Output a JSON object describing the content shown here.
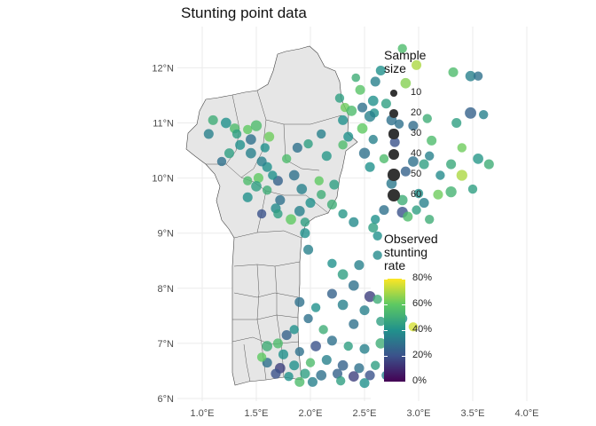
{
  "chart_data": {
    "type": "scatter",
    "title": "Stunting point data",
    "region": "Benin",
    "xlim": [
      0.75,
      4.0
    ],
    "ylim": [
      6.0,
      12.6
    ],
    "x_ticks": [
      1.0,
      1.5,
      2.0,
      2.5,
      3.0,
      3.5,
      4.0
    ],
    "x_tick_labels": [
      "1.0°E",
      "1.5°E",
      "2.0°E",
      "2.5°E",
      "3.0°E",
      "3.5°E",
      "4.0°E"
    ],
    "y_ticks": [
      6,
      7,
      8,
      9,
      10,
      11,
      12
    ],
    "y_tick_labels": [
      "6°N",
      "7°N",
      "8°N",
      "9°N",
      "10°N",
      "11°N",
      "12°N"
    ],
    "grid": true,
    "size_legend": {
      "title": [
        "Sample",
        "size"
      ],
      "values": [
        10,
        20,
        30,
        40,
        50,
        60
      ],
      "labels": [
        "10",
        "20",
        "30",
        "40",
        "50",
        "60"
      ]
    },
    "color_legend": {
      "title": [
        "Observed",
        "stunting",
        "rate"
      ],
      "palette": "viridis",
      "range": [
        0,
        0.8
      ],
      "breaks": [
        0,
        0.2,
        0.4,
        0.6,
        0.8
      ],
      "labels": [
        "0%",
        "20%",
        "40%",
        "60%",
        "80%"
      ]
    },
    "points": [
      [
        2.85,
        12.35,
        25,
        0.55
      ],
      [
        2.98,
        12.05,
        30,
        0.7
      ],
      [
        3.32,
        11.92,
        30,
        0.55
      ],
      [
        3.48,
        11.85,
        35,
        0.35
      ],
      [
        3.55,
        11.85,
        25,
        0.3
      ],
      [
        2.42,
        11.82,
        20,
        0.5
      ],
      [
        2.6,
        11.75,
        30,
        0.35
      ],
      [
        2.88,
        11.72,
        35,
        0.65
      ],
      [
        2.46,
        11.6,
        30,
        0.58
      ],
      [
        2.27,
        11.45,
        25,
        0.45
      ],
      [
        2.58,
        11.4,
        35,
        0.4
      ],
      [
        2.7,
        11.35,
        30,
        0.45
      ],
      [
        2.32,
        11.28,
        25,
        0.62
      ],
      [
        2.48,
        11.28,
        30,
        0.3
      ],
      [
        2.38,
        11.22,
        35,
        0.55
      ],
      [
        2.59,
        11.18,
        25,
        0.4
      ],
      [
        2.55,
        11.12,
        40,
        0.35
      ],
      [
        2.3,
        11.05,
        30,
        0.4
      ],
      [
        2.75,
        11.05,
        35,
        0.3
      ],
      [
        3.08,
        11.08,
        25,
        0.5
      ],
      [
        3.48,
        11.18,
        45,
        0.25
      ],
      [
        3.6,
        11.15,
        25,
        0.35
      ],
      [
        3.35,
        11.0,
        30,
        0.45
      ],
      [
        2.82,
        10.98,
        25,
        0.3
      ],
      [
        2.95,
        10.95,
        30,
        0.28
      ],
      [
        2.48,
        10.9,
        35,
        0.6
      ],
      [
        2.35,
        10.75,
        30,
        0.4
      ],
      [
        2.58,
        10.7,
        25,
        0.35
      ],
      [
        2.78,
        10.65,
        30,
        0.2
      ],
      [
        3.12,
        10.68,
        30,
        0.55
      ],
      [
        3.4,
        10.55,
        25,
        0.62
      ],
      [
        3.65,
        10.25,
        30,
        0.5
      ],
      [
        3.55,
        10.35,
        35,
        0.42
      ],
      [
        3.4,
        10.05,
        40,
        0.7
      ],
      [
        3.3,
        10.25,
        30,
        0.48
      ],
      [
        3.2,
        10.05,
        25,
        0.38
      ],
      [
        3.05,
        10.25,
        30,
        0.45
      ],
      [
        3.1,
        10.4,
        25,
        0.35
      ],
      [
        2.95,
        10.3,
        35,
        0.3
      ],
      [
        2.88,
        10.12,
        30,
        0.25
      ],
      [
        2.68,
        10.35,
        25,
        0.55
      ],
      [
        2.55,
        10.2,
        30,
        0.4
      ],
      [
        2.75,
        9.9,
        35,
        0.32
      ],
      [
        3.5,
        9.8,
        25,
        0.45
      ],
      [
        3.3,
        9.75,
        40,
        0.52
      ],
      [
        3.18,
        9.7,
        30,
        0.62
      ],
      [
        3.0,
        9.72,
        25,
        0.4
      ],
      [
        2.85,
        9.6,
        35,
        0.5
      ],
      [
        3.05,
        9.55,
        30,
        0.35
      ],
      [
        2.98,
        9.42,
        25,
        0.45
      ],
      [
        2.85,
        9.38,
        40,
        0.2
      ],
      [
        2.68,
        9.42,
        30,
        0.3
      ],
      [
        2.6,
        9.25,
        25,
        0.4
      ],
      [
        2.9,
        9.3,
        30,
        0.55
      ],
      [
        3.1,
        9.25,
        25,
        0.5
      ],
      [
        2.58,
        9.1,
        30,
        0.45
      ],
      [
        2.62,
        8.95,
        25,
        0.4
      ],
      [
        2.4,
        9.2,
        30,
        0.38
      ],
      [
        2.3,
        9.35,
        25,
        0.42
      ],
      [
        2.2,
        9.52,
        30,
        0.5
      ],
      [
        1.78,
        10.35,
        25,
        0.55
      ],
      [
        1.6,
        10.2,
        30,
        0.4
      ],
      [
        1.85,
        10.05,
        35,
        0.3
      ],
      [
        1.7,
        9.95,
        30,
        0.25
      ],
      [
        1.92,
        9.8,
        35,
        0.35
      ],
      [
        2.08,
        9.95,
        25,
        0.6
      ],
      [
        2.22,
        9.88,
        30,
        0.45
      ],
      [
        2.1,
        9.7,
        25,
        0.5
      ],
      [
        2.0,
        9.55,
        30,
        0.4
      ],
      [
        1.9,
        9.4,
        35,
        0.35
      ],
      [
        1.72,
        9.6,
        30,
        0.3
      ],
      [
        1.55,
        9.35,
        25,
        0.2
      ],
      [
        1.68,
        9.45,
        30,
        0.38
      ],
      [
        1.95,
        9.2,
        25,
        0.45
      ],
      [
        1.95,
        9.0,
        30,
        0.4
      ],
      [
        1.98,
        8.7,
        30,
        0.35
      ],
      [
        2.2,
        8.45,
        25,
        0.4
      ],
      [
        2.45,
        8.42,
        30,
        0.35
      ],
      [
        2.62,
        8.6,
        25,
        0.38
      ],
      [
        2.3,
        8.25,
        35,
        0.45
      ],
      [
        1.1,
        11.05,
        30,
        0.5
      ],
      [
        1.22,
        11.0,
        35,
        0.4
      ],
      [
        1.3,
        10.9,
        30,
        0.55
      ],
      [
        1.42,
        10.88,
        25,
        0.6
      ],
      [
        1.5,
        10.95,
        40,
        0.55
      ],
      [
        1.06,
        10.8,
        30,
        0.35
      ],
      [
        1.32,
        10.8,
        25,
        0.45
      ],
      [
        1.45,
        10.7,
        35,
        0.3
      ],
      [
        1.62,
        10.75,
        30,
        0.62
      ],
      [
        1.58,
        10.55,
        25,
        0.4
      ],
      [
        1.35,
        10.6,
        30,
        0.4
      ],
      [
        1.45,
        10.45,
        35,
        0.35
      ],
      [
        1.25,
        10.45,
        30,
        0.45
      ],
      [
        1.18,
        10.3,
        25,
        0.3
      ],
      [
        1.55,
        10.3,
        30,
        0.35
      ],
      [
        1.65,
        10.05,
        25,
        0.4
      ],
      [
        1.52,
        10.0,
        30,
        0.6
      ],
      [
        1.5,
        9.85,
        35,
        0.45
      ],
      [
        1.42,
        9.65,
        30,
        0.4
      ],
      [
        1.6,
        9.78,
        25,
        0.5
      ],
      [
        1.82,
        9.25,
        35,
        0.6
      ],
      [
        1.7,
        9.35,
        25,
        0.45
      ],
      [
        2.15,
        10.4,
        30,
        0.42
      ],
      [
        2.3,
        10.6,
        25,
        0.55
      ],
      [
        2.1,
        10.8,
        25,
        0.35
      ],
      [
        2.5,
        10.45,
        40,
        0.3
      ],
      [
        1.42,
        9.95,
        25,
        0.55
      ],
      [
        1.88,
        10.55,
        30,
        0.3
      ],
      [
        1.98,
        10.62,
        25,
        0.45
      ],
      [
        2.65,
        11.95,
        30,
        0.4
      ],
      [
        2.4,
        8.05,
        35,
        0.3
      ],
      [
        2.55,
        7.85,
        40,
        0.15
      ],
      [
        2.2,
        7.9,
        30,
        0.25
      ],
      [
        2.3,
        7.7,
        35,
        0.35
      ],
      [
        2.05,
        7.65,
        25,
        0.4
      ],
      [
        1.9,
        7.75,
        30,
        0.3
      ],
      [
        2.5,
        7.6,
        30,
        0.35
      ],
      [
        2.65,
        7.4,
        25,
        0.45
      ],
      [
        2.4,
        7.35,
        30,
        0.3
      ],
      [
        1.85,
        7.25,
        25,
        0.4
      ],
      [
        1.7,
        7.0,
        30,
        0.55
      ],
      [
        1.6,
        6.95,
        35,
        0.5
      ],
      [
        1.75,
        6.8,
        30,
        0.4
      ],
      [
        1.9,
        6.85,
        25,
        0.3
      ],
      [
        2.05,
        6.95,
        35,
        0.2
      ],
      [
        2.2,
        7.05,
        30,
        0.3
      ],
      [
        2.35,
        6.95,
        25,
        0.45
      ],
      [
        2.5,
        6.9,
        30,
        0.35
      ],
      [
        2.65,
        7.0,
        35,
        0.5
      ],
      [
        2.8,
        6.85,
        30,
        0.55
      ],
      [
        1.6,
        6.65,
        30,
        0.3
      ],
      [
        1.72,
        6.55,
        35,
        0.15
      ],
      [
        1.85,
        6.6,
        30,
        0.4
      ],
      [
        2.0,
        6.65,
        25,
        0.55
      ],
      [
        2.15,
        6.7,
        30,
        0.35
      ],
      [
        2.3,
        6.6,
        35,
        0.25
      ],
      [
        2.45,
        6.55,
        30,
        0.3
      ],
      [
        2.6,
        6.6,
        25,
        0.45
      ],
      [
        2.75,
        6.7,
        30,
        0.5
      ],
      [
        2.8,
        6.55,
        35,
        0.6
      ],
      [
        1.68,
        6.45,
        30,
        0.2
      ],
      [
        1.8,
        6.4,
        25,
        0.4
      ],
      [
        1.95,
        6.45,
        30,
        0.45
      ],
      [
        2.1,
        6.42,
        35,
        0.3
      ],
      [
        2.25,
        6.45,
        30,
        0.25
      ],
      [
        2.4,
        6.4,
        35,
        0.15
      ],
      [
        2.55,
        6.42,
        30,
        0.2
      ],
      [
        2.7,
        6.42,
        25,
        0.35
      ],
      [
        1.9,
        6.3,
        30,
        0.55
      ],
      [
        2.62,
        7.8,
        25,
        0.5
      ],
      [
        1.78,
        7.15,
        30,
        0.25
      ],
      [
        2.12,
        7.25,
        25,
        0.5
      ],
      [
        2.72,
        7.2,
        30,
        0.2
      ],
      [
        2.95,
        7.3,
        25,
        0.75
      ],
      [
        2.85,
        7.45,
        30,
        0.4
      ],
      [
        1.55,
        6.75,
        25,
        0.6
      ],
      [
        2.02,
        6.3,
        30,
        0.35
      ],
      [
        2.28,
        6.32,
        25,
        0.45
      ],
      [
        2.5,
        6.28,
        30,
        0.4
      ],
      [
        1.98,
        7.45,
        25,
        0.3
      ]
    ]
  }
}
